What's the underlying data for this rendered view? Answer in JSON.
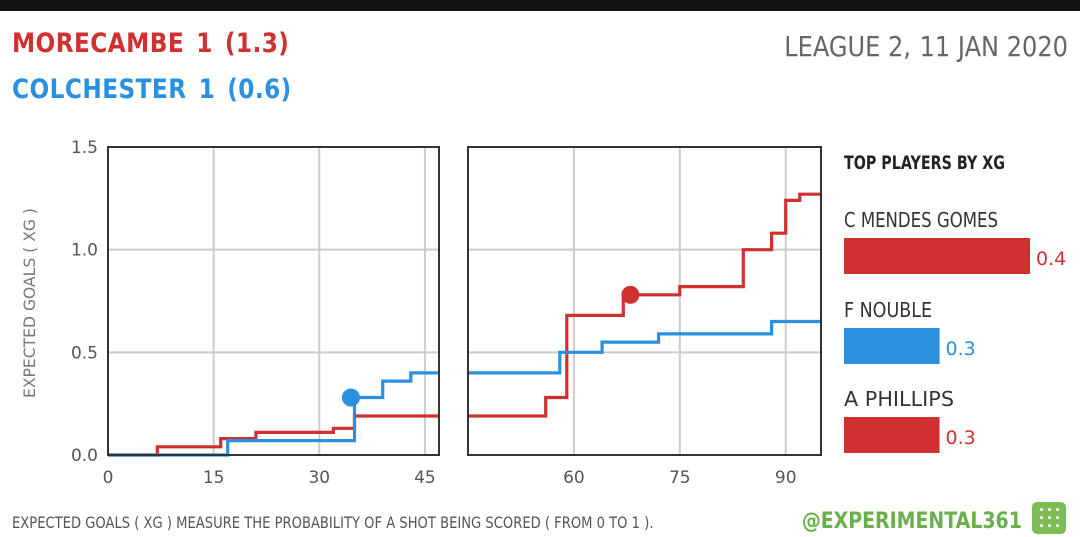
{
  "header": {
    "home": {
      "name": "MORECAMBE",
      "goals": "1",
      "xg": "(1.3)",
      "color": "#d03030"
    },
    "away": {
      "name": "COLCHESTER",
      "goals": "1",
      "xg": "(0.6)",
      "color": "#2b90e0"
    },
    "competition": "LEAGUE 2,",
    "date": "11 JAN 2020"
  },
  "chart_data": [
    {
      "type": "line",
      "subtype": "step",
      "ylabel": "EXPECTED GOALS ( XG )",
      "ylim": [
        0,
        1.5
      ],
      "yticks": [
        "0.0",
        "0.5",
        "1.0",
        "1.5"
      ],
      "panels": [
        {
          "xlim": [
            0,
            47
          ],
          "xticks": [
            "0",
            "15",
            "30",
            "45"
          ]
        },
        {
          "xlim": [
            45,
            95
          ],
          "xticks": [
            "60",
            "75",
            "90"
          ]
        }
      ],
      "series": [
        {
          "name": "MORECAMBE",
          "color": "#d03030",
          "first_half": [
            [
              0,
              0
            ],
            [
              7,
              0.04
            ],
            [
              16,
              0.08
            ],
            [
              21,
              0.11
            ],
            [
              32,
              0.13
            ],
            [
              35,
              0.19
            ],
            [
              47,
              0.19
            ]
          ],
          "second_half": [
            [
              45,
              0.19
            ],
            [
              56,
              0.28
            ],
            [
              59,
              0.68
            ],
            [
              67,
              0.78
            ],
            [
              75,
              0.82
            ],
            [
              84,
              1.0
            ],
            [
              88,
              1.08
            ],
            [
              90,
              1.24
            ],
            [
              92,
              1.27
            ],
            [
              95,
              1.27
            ]
          ],
          "goals": [
            {
              "minute": 68,
              "xg": 0.78
            }
          ]
        },
        {
          "name": "COLCHESTER",
          "color": "#2b90e0",
          "first_half": [
            [
              0,
              0
            ],
            [
              17,
              0.07
            ],
            [
              35,
              0.28
            ],
            [
              39,
              0.36
            ],
            [
              43,
              0.4
            ],
            [
              47,
              0.4
            ]
          ],
          "second_half": [
            [
              45,
              0.4
            ],
            [
              58,
              0.5
            ],
            [
              64,
              0.55
            ],
            [
              72,
              0.59
            ],
            [
              88,
              0.65
            ],
            [
              95,
              0.65
            ]
          ],
          "goals": [
            {
              "minute": 34.5,
              "xg": 0.28
            }
          ]
        }
      ]
    },
    {
      "type": "bar",
      "orientation": "horizontal",
      "title": "TOP PLAYERS BY XG",
      "categories": [
        "C MENDES GOMES",
        "F NOUBLE",
        "A PHILLIPS"
      ],
      "values": [
        0.4,
        0.3,
        0.3
      ],
      "labels": [
        "0.4",
        "0.3",
        "0.3"
      ],
      "colors": [
        "#d03030",
        "#2b90e0",
        "#d03030"
      ]
    }
  ],
  "footer": {
    "note": "EXPECTED GOALS ( XG ) MEASURE THE PROBABILITY OF A SHOT BEING SCORED ( FROM 0 TO 1 ).",
    "handle": "@EXPERIMENTAL361"
  }
}
